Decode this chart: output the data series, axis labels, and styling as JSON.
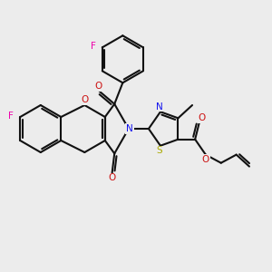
{
  "bg": "#ececec",
  "lw": 1.5,
  "colors": {
    "bond": "#111111",
    "F": "#ee00aa",
    "O": "#cc1111",
    "N": "#1111ee",
    "S": "#aaaa00"
  },
  "scale": 26,
  "ox": 128,
  "oy": 158
}
